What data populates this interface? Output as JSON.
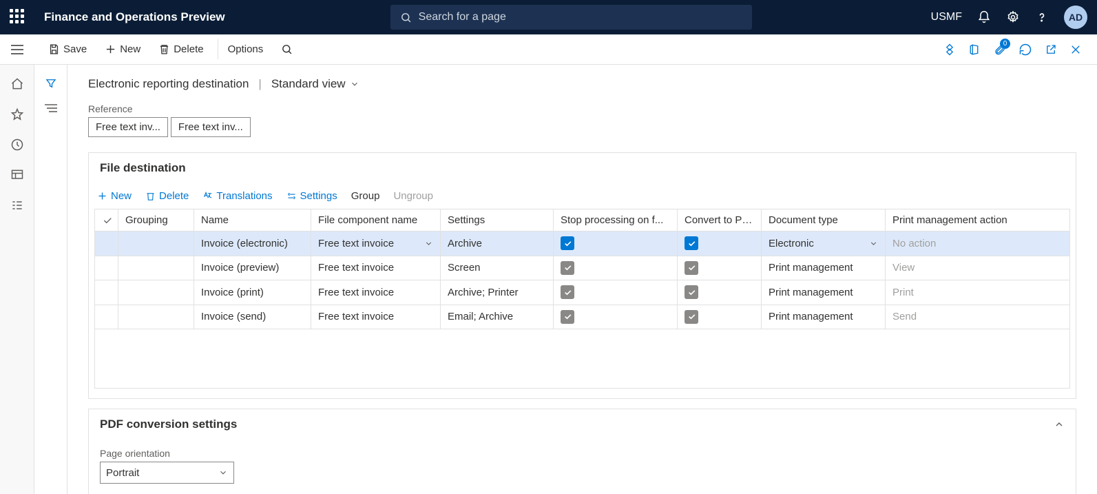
{
  "app_title": "Finance and Operations Preview",
  "search_placeholder": "Search for a page",
  "legal_entity": "USMF",
  "user_initials": "AD",
  "attach_badge": "0",
  "cmd": {
    "save": "Save",
    "new": "New",
    "delete": "Delete",
    "options": "Options"
  },
  "breadcrumb": {
    "title": "Electronic reporting destination",
    "view": "Standard view"
  },
  "reference": {
    "label": "Reference",
    "chips": [
      "Free text inv...",
      "Free text inv..."
    ]
  },
  "file_dest": {
    "title": "File destination",
    "toolbar": {
      "new": "New",
      "delete": "Delete",
      "translations": "Translations",
      "settings": "Settings",
      "group": "Group",
      "ungroup": "Ungroup"
    },
    "columns": {
      "grouping": "Grouping",
      "name": "Name",
      "file_component": "File component name",
      "settings": "Settings",
      "stop": "Stop processing on f...",
      "convert": "Convert to PDF",
      "doc_type": "Document type",
      "pma": "Print management action"
    },
    "rows": [
      {
        "name": "Invoice (electronic)",
        "file_component": "Free text invoice",
        "settings": "Archive",
        "stop": true,
        "stop_style": "blue",
        "convert": true,
        "convert_style": "blue",
        "doc_type": "Electronic",
        "pma": "No action",
        "selected": true
      },
      {
        "name": "Invoice (preview)",
        "file_component": "Free text invoice",
        "settings": "Screen",
        "stop": true,
        "stop_style": "grey",
        "convert": true,
        "convert_style": "grey",
        "doc_type": "Print management",
        "pma": "View",
        "selected": false
      },
      {
        "name": "Invoice (print)",
        "file_component": "Free text invoice",
        "settings": "Archive; Printer",
        "stop": true,
        "stop_style": "grey",
        "convert": true,
        "convert_style": "grey",
        "doc_type": "Print management",
        "pma": "Print",
        "selected": false
      },
      {
        "name": "Invoice (send)",
        "file_component": "Free text invoice",
        "settings": "Email; Archive",
        "stop": true,
        "stop_style": "grey",
        "convert": true,
        "convert_style": "grey",
        "doc_type": "Print management",
        "pma": "Send",
        "selected": false
      }
    ]
  },
  "pdf": {
    "title": "PDF conversion settings",
    "orientation_label": "Page orientation",
    "orientation_value": "Portrait"
  },
  "colors": {
    "nav_bg": "#0b1d36",
    "accent": "#0078d4",
    "selected_row": "#dde9fa",
    "border": "#e1e1e1",
    "grey_check": "#8a8886"
  }
}
